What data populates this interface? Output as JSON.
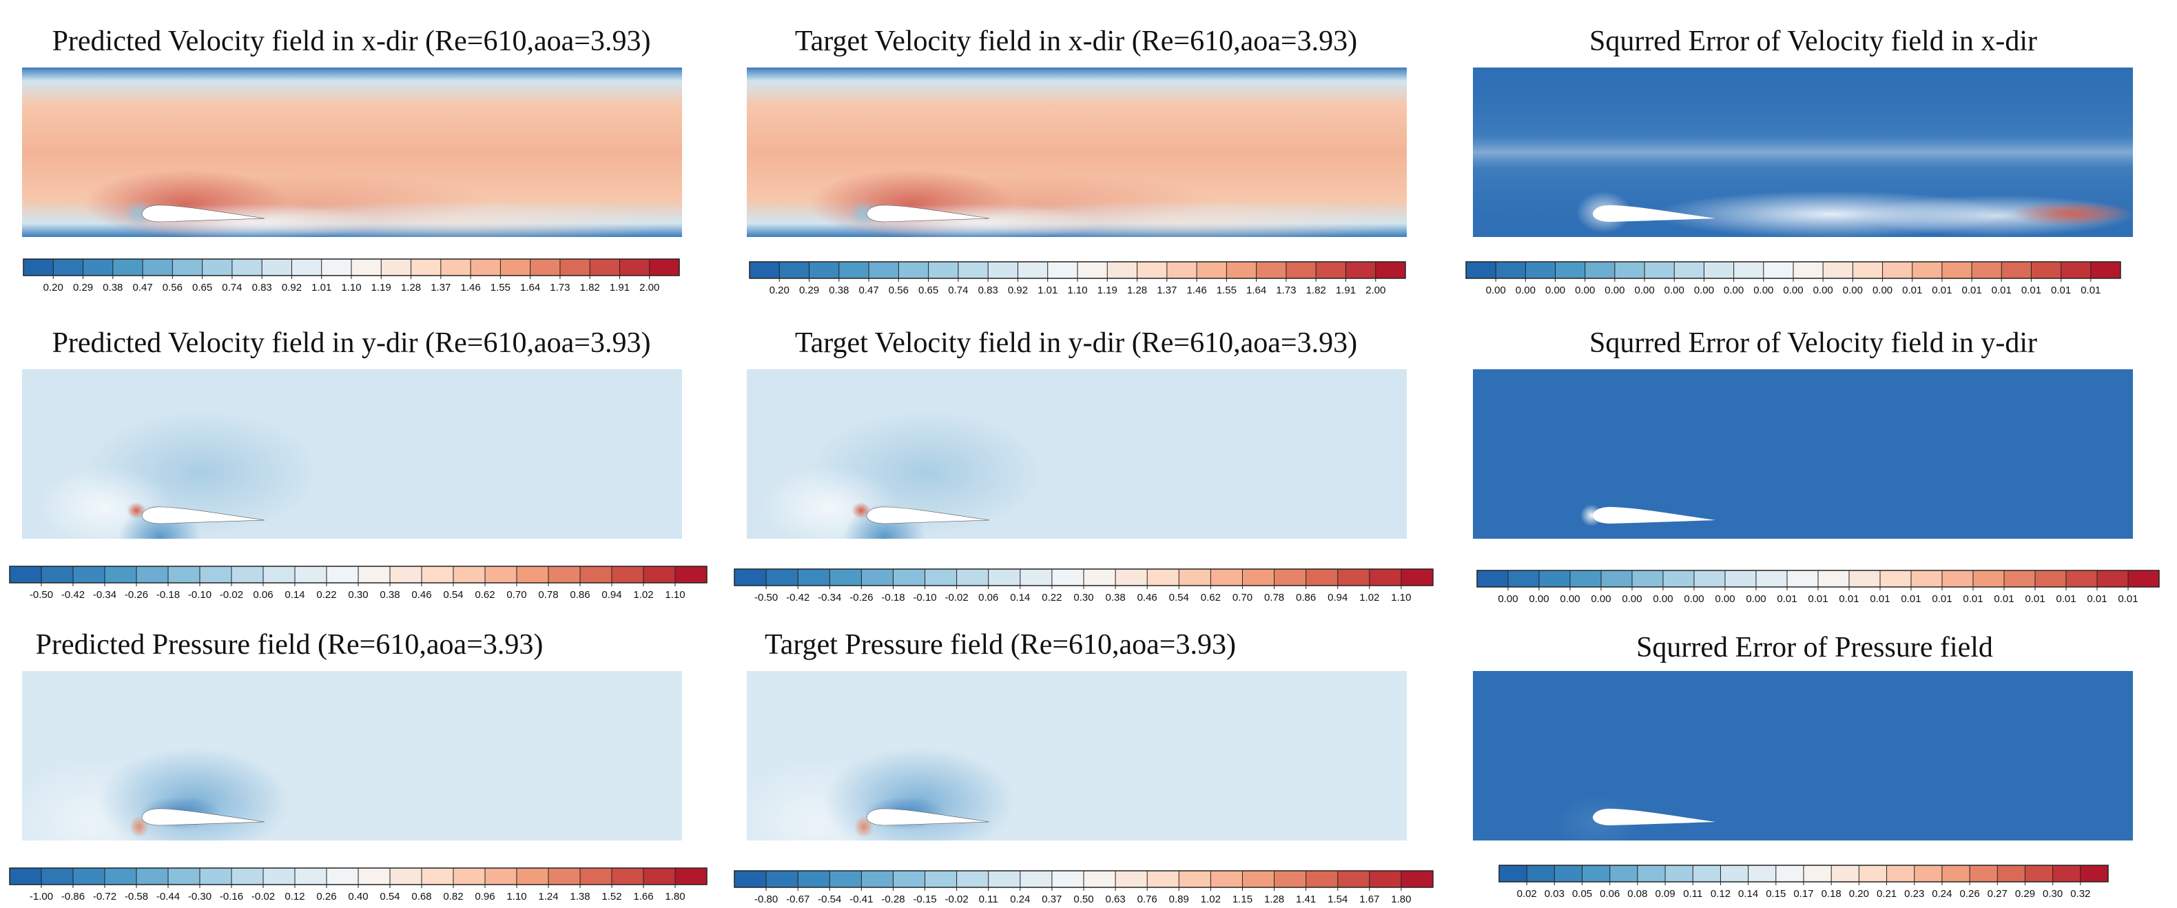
{
  "colors": {
    "scale": [
      "#2166ac",
      "#4393c3",
      "#92c5de",
      "#d1e5f0",
      "#f7f7f7",
      "#fddbc7",
      "#f4a582",
      "#d6604d",
      "#b2182b"
    ],
    "airfoil": "#ffffff",
    "text": "#111111"
  },
  "chart_data": [
    {
      "type": "heatmap",
      "title": "Predicted Velocity field in x-dir (Re=610,aoa=3.93)",
      "variable": "u",
      "source": "predicted",
      "colorbar": {
        "min": 0.2,
        "max": 2.0,
        "unit_step": 0.09,
        "tick_labels": [
          "0.20",
          "0.29",
          "0.38",
          "0.47",
          "0.56",
          "0.65",
          "0.74",
          "0.83",
          "0.92",
          "1.01",
          "1.10",
          "1.19",
          "1.28",
          "1.37",
          "1.46",
          "1.55",
          "1.64",
          "1.73",
          "1.82",
          "1.91",
          "2.00"
        ]
      }
    },
    {
      "type": "heatmap",
      "title": "Target Velocity field in x-dir (Re=610,aoa=3.93)",
      "variable": "u",
      "source": "target",
      "colorbar": {
        "min": 0.2,
        "max": 2.0,
        "unit_step": 0.09,
        "tick_labels": [
          "0.20",
          "0.29",
          "0.38",
          "0.47",
          "0.56",
          "0.65",
          "0.74",
          "0.83",
          "0.92",
          "1.01",
          "1.10",
          "1.19",
          "1.28",
          "1.37",
          "1.46",
          "1.55",
          "1.64",
          "1.73",
          "1.82",
          "1.91",
          "2.00"
        ]
      }
    },
    {
      "type": "heatmap",
      "title": "Squrred Error of Velocity field in x-dir",
      "variable": "u",
      "source": "error",
      "colorbar": {
        "min": 0.0,
        "max": 0.01,
        "tick_labels": [
          "0.00",
          "0.00",
          "0.00",
          "0.00",
          "0.00",
          "0.00",
          "0.00",
          "0.00",
          "0.00",
          "0.00",
          "0.00",
          "0.00",
          "0.00",
          "0.00",
          "0.01",
          "0.01",
          "0.01",
          "0.01",
          "0.01",
          "0.01",
          "0.01"
        ]
      }
    },
    {
      "type": "heatmap",
      "title": "Predicted Velocity field in y-dir (Re=610,aoa=3.93)",
      "variable": "v",
      "source": "predicted",
      "colorbar": {
        "min": -0.5,
        "max": 1.1,
        "unit_step": 0.08,
        "tick_labels": [
          "-0.50",
          "-0.42",
          "-0.34",
          "-0.26",
          "-0.18",
          "-0.10",
          "-0.02",
          "0.06",
          "0.14",
          "0.22",
          "0.30",
          "0.38",
          "0.46",
          "0.54",
          "0.62",
          "0.70",
          "0.78",
          "0.86",
          "0.94",
          "1.02",
          "1.10"
        ]
      }
    },
    {
      "type": "heatmap",
      "title": "Target Velocity field in y-dir (Re=610,aoa=3.93)",
      "variable": "v",
      "source": "target",
      "colorbar": {
        "min": -0.5,
        "max": 1.1,
        "unit_step": 0.08,
        "tick_labels": [
          "-0.50",
          "-0.42",
          "-0.34",
          "-0.26",
          "-0.18",
          "-0.10",
          "-0.02",
          "0.06",
          "0.14",
          "0.22",
          "0.30",
          "0.38",
          "0.46",
          "0.54",
          "0.62",
          "0.70",
          "0.78",
          "0.86",
          "0.94",
          "1.02",
          "1.10"
        ]
      }
    },
    {
      "type": "heatmap",
      "title": "Squrred Error of Velocity field in y-dir",
      "variable": "v",
      "source": "error",
      "colorbar": {
        "min": 0.0,
        "max": 0.01,
        "tick_labels": [
          "0.00",
          "0.00",
          "0.00",
          "0.00",
          "0.00",
          "0.00",
          "0.00",
          "0.00",
          "0.00",
          "0.01",
          "0.01",
          "0.01",
          "0.01",
          "0.01",
          "0.01",
          "0.01",
          "0.01",
          "0.01",
          "0.01",
          "0.01",
          "0.01"
        ]
      }
    },
    {
      "type": "heatmap",
      "title": "Predicted Pressure field (Re=610,aoa=3.93)",
      "variable": "p",
      "source": "predicted",
      "colorbar": {
        "min": -1.0,
        "max": 1.8,
        "unit_step": 0.14,
        "tick_labels": [
          "-1.00",
          "-0.86",
          "-0.72",
          "-0.58",
          "-0.44",
          "-0.30",
          "-0.16",
          "-0.02",
          "0.12",
          "0.26",
          "0.40",
          "0.54",
          "0.68",
          "0.82",
          "0.96",
          "1.10",
          "1.24",
          "1.38",
          "1.52",
          "1.66",
          "1.80"
        ]
      }
    },
    {
      "type": "heatmap",
      "title": "Target Pressure field (Re=610,aoa=3.93)",
      "variable": "p",
      "source": "target",
      "colorbar": {
        "min": -0.8,
        "max": 1.8,
        "unit_step": 0.13,
        "tick_labels": [
          "-0.80",
          "-0.67",
          "-0.54",
          "-0.41",
          "-0.28",
          "-0.15",
          "-0.02",
          "0.11",
          "0.24",
          "0.37",
          "0.50",
          "0.63",
          "0.76",
          "0.89",
          "1.02",
          "1.15",
          "1.28",
          "1.41",
          "1.54",
          "1.67",
          "1.80"
        ]
      }
    },
    {
      "type": "heatmap",
      "title": "Squrred Error of Pressure field",
      "variable": "p",
      "source": "error",
      "colorbar": {
        "min": 0.02,
        "max": 0.32,
        "tick_labels": [
          "0.02",
          "0.03",
          "0.05",
          "0.06",
          "0.08",
          "0.09",
          "0.11",
          "0.12",
          "0.14",
          "0.15",
          "0.17",
          "0.18",
          "0.20",
          "0.21",
          "0.23",
          "0.24",
          "0.26",
          "0.27",
          "0.29",
          "0.30",
          "0.32"
        ]
      }
    }
  ]
}
